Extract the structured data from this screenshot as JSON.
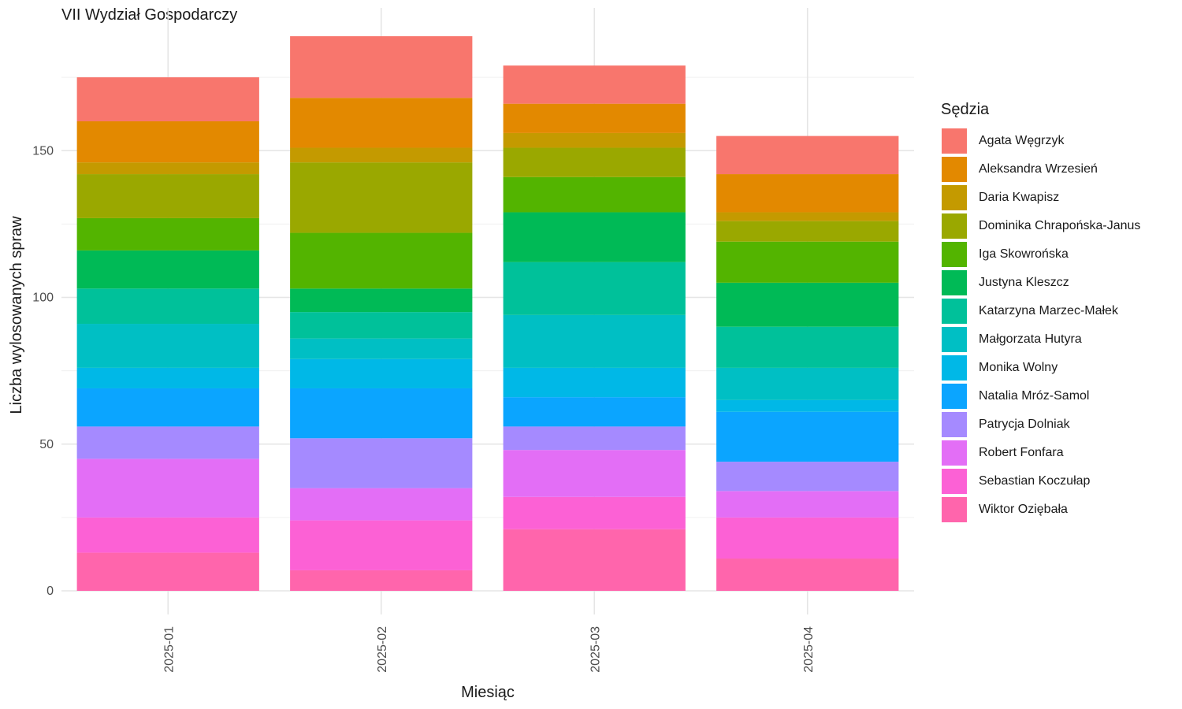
{
  "chart_data": {
    "type": "bar",
    "stacked": true,
    "title": "VII Wydział Gospodarczy",
    "xlabel": "Miesiąc",
    "ylabel": "Liczba wylosowanych spraw",
    "legend_title": "Sędzia",
    "legend_position": "right",
    "grid": true,
    "ylim": [
      0,
      195
    ],
    "yticks": [
      0,
      50,
      100,
      150
    ],
    "categories": [
      "2025-01",
      "2025-02",
      "2025-03",
      "2025-04"
    ],
    "series": [
      {
        "name": "Wiktor Ozięba​ła",
        "color": "#FF65AC",
        "values": [
          13,
          7,
          21,
          11
        ]
      },
      {
        "name": "Sebastian Koczułap",
        "color": "#FC61D5",
        "values": [
          12,
          17,
          11,
          14
        ]
      },
      {
        "name": "Robert Fonfara",
        "color": "#E36EF6",
        "values": [
          20,
          11,
          16,
          9
        ]
      },
      {
        "name": "Patrycja Dolniak",
        "color": "#A58AFF",
        "values": [
          11,
          17,
          8,
          10
        ]
      },
      {
        "name": "Natalia Mróz-Samol",
        "color": "#0BA5FF",
        "values": [
          13,
          17,
          10,
          17
        ]
      },
      {
        "name": "Monika Wolny",
        "color": "#00B8E7",
        "values": [
          7,
          10,
          10,
          4
        ]
      },
      {
        "name": "Małgorzata Hutyra",
        "color": "#00BFC4",
        "values": [
          15,
          7,
          18,
          11
        ]
      },
      {
        "name": "Katarzyna Marzec-Małek",
        "color": "#00C19A",
        "values": [
          12,
          9,
          18,
          14
        ]
      },
      {
        "name": "Justyna Kleszcz",
        "color": "#00BA56",
        "values": [
          13,
          8,
          17,
          15
        ]
      },
      {
        "name": "Iga Skowrońska",
        "color": "#53B400",
        "values": [
          11,
          19,
          12,
          14
        ]
      },
      {
        "name": "Dominika Chrapońska-Janus",
        "color": "#9AA800",
        "values": [
          15,
          24,
          10,
          7
        ]
      },
      {
        "name": "Daria Kwapisz",
        "color": "#C49A00",
        "values": [
          4,
          5,
          5,
          3
        ]
      },
      {
        "name": "Aleksandra Wrzesień",
        "color": "#E38900",
        "values": [
          14,
          17,
          10,
          13
        ]
      },
      {
        "name": "Agata Węgrzyk",
        "color": "#F8766D",
        "values": [
          15,
          21,
          13,
          13
        ]
      }
    ],
    "legend_order": [
      "Agata Węgrzyk",
      "Aleksandra Wrzesień",
      "Daria Kwapisz",
      "Dominika Chrapońska-Janus",
      "Iga Skowrońska",
      "Justyna Kleszcz",
      "Katarzyna Marzec-Małek",
      "Małgorzata Hutyra",
      "Monika Wolny",
      "Natalia Mróz-Samol",
      "Patrycja Dolniak",
      "Robert Fonfara",
      "Sebastian Koczułap",
      "Wiktor Ozięba​ła"
    ]
  }
}
